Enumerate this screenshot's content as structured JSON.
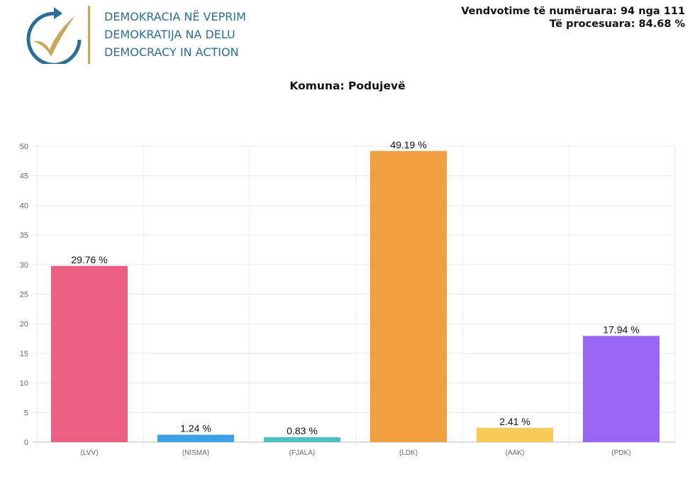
{
  "header": {
    "org_lines": [
      "DEMOKRACIA NË VEPRIM",
      "DEMOKRATIJA NA DELU",
      "DEMOCRACY IN ACTION"
    ],
    "stats_line1": "Vendvotime të numëruara: 94 nga 111",
    "stats_line2": "Të procesuara: 84.68 %",
    "logo_colors": {
      "blue": "#2a6f95",
      "gold": "#c9a75a"
    }
  },
  "chart_data": {
    "type": "bar",
    "title": "Komuna: Podujevë",
    "categories": [
      "(LVV)",
      "(NISMA)",
      "(FJALA)",
      "(LDK)",
      "(AAK)",
      "(PDK)"
    ],
    "values": [
      29.76,
      1.24,
      0.83,
      49.19,
      2.41,
      17.94
    ],
    "data_labels": [
      "29.76 %",
      "1.24 %",
      "0.83 %",
      "49.19 %",
      "2.41 %",
      "17.94 %"
    ],
    "colors": [
      "#ec5f80",
      "#3ca0e6",
      "#4fc2c0",
      "#f1a03f",
      "#f8ca58",
      "#9a66f5"
    ],
    "ylim": [
      0,
      50
    ],
    "yticks": [
      0,
      5,
      10,
      15,
      20,
      25,
      30,
      35,
      40,
      45,
      50
    ],
    "grid": true,
    "xlabel": "",
    "ylabel": ""
  }
}
